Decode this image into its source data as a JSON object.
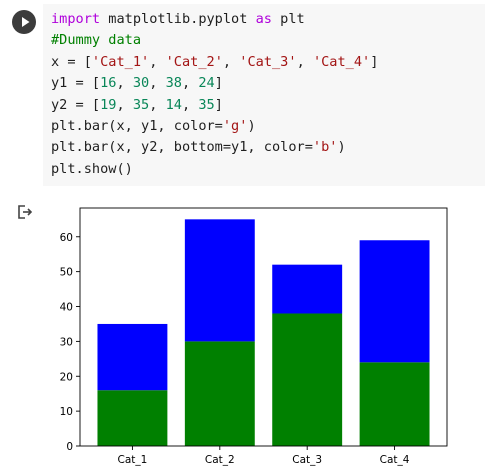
{
  "code_cell": {
    "lines": [
      [
        {
          "t": "import",
          "c": "kw"
        },
        {
          "t": " matplotlib.pyplot ",
          "c": "fn"
        },
        {
          "t": "as",
          "c": "kw"
        },
        {
          "t": " plt",
          "c": "fn"
        }
      ],
      [
        {
          "t": "#Dummy data",
          "c": "cm"
        }
      ],
      [
        {
          "t": "x = [",
          "c": "fn"
        },
        {
          "t": "'Cat_1'",
          "c": "st"
        },
        {
          "t": ", ",
          "c": "fn"
        },
        {
          "t": "'Cat_2'",
          "c": "st"
        },
        {
          "t": ", ",
          "c": "fn"
        },
        {
          "t": "'Cat_3'",
          "c": "st"
        },
        {
          "t": ", ",
          "c": "fn"
        },
        {
          "t": "'Cat_4'",
          "c": "st"
        },
        {
          "t": "]",
          "c": "fn"
        }
      ],
      [
        {
          "t": "y1 = [",
          "c": "fn"
        },
        {
          "t": "16",
          "c": "nm"
        },
        {
          "t": ", ",
          "c": "fn"
        },
        {
          "t": "30",
          "c": "nm"
        },
        {
          "t": ", ",
          "c": "fn"
        },
        {
          "t": "38",
          "c": "nm"
        },
        {
          "t": ", ",
          "c": "fn"
        },
        {
          "t": "24",
          "c": "nm"
        },
        {
          "t": "]",
          "c": "fn"
        }
      ],
      [
        {
          "t": "y2 = [",
          "c": "fn"
        },
        {
          "t": "19",
          "c": "nm"
        },
        {
          "t": ", ",
          "c": "fn"
        },
        {
          "t": "35",
          "c": "nm"
        },
        {
          "t": ", ",
          "c": "fn"
        },
        {
          "t": "14",
          "c": "nm"
        },
        {
          "t": ", ",
          "c": "fn"
        },
        {
          "t": "35",
          "c": "nm"
        },
        {
          "t": "]",
          "c": "fn"
        }
      ],
      [
        {
          "t": "plt.bar(x, y1, color=",
          "c": "fn"
        },
        {
          "t": "'g'",
          "c": "st"
        },
        {
          "t": ")",
          "c": "fn"
        }
      ],
      [
        {
          "t": "plt.bar(x, y2, bottom=y1, color=",
          "c": "fn"
        },
        {
          "t": "'b'",
          "c": "st"
        },
        {
          "t": ")",
          "c": "fn"
        }
      ],
      [
        {
          "t": "plt.show()",
          "c": "fn"
        }
      ]
    ],
    "run_icon": "play-icon",
    "output_icon": "output-redirect-icon"
  },
  "chart_data": {
    "type": "bar",
    "stacked": true,
    "categories": [
      "Cat_1",
      "Cat_2",
      "Cat_3",
      "Cat_4"
    ],
    "series": [
      {
        "values": [
          16,
          30,
          38,
          24
        ],
        "color": "#008000"
      },
      {
        "values": [
          19,
          35,
          14,
          35
        ],
        "color": "#0000ff"
      }
    ],
    "ylim": [
      0,
      68.25
    ],
    "yticks": [
      0,
      10,
      20,
      30,
      40,
      50,
      60
    ],
    "grid": false
  }
}
